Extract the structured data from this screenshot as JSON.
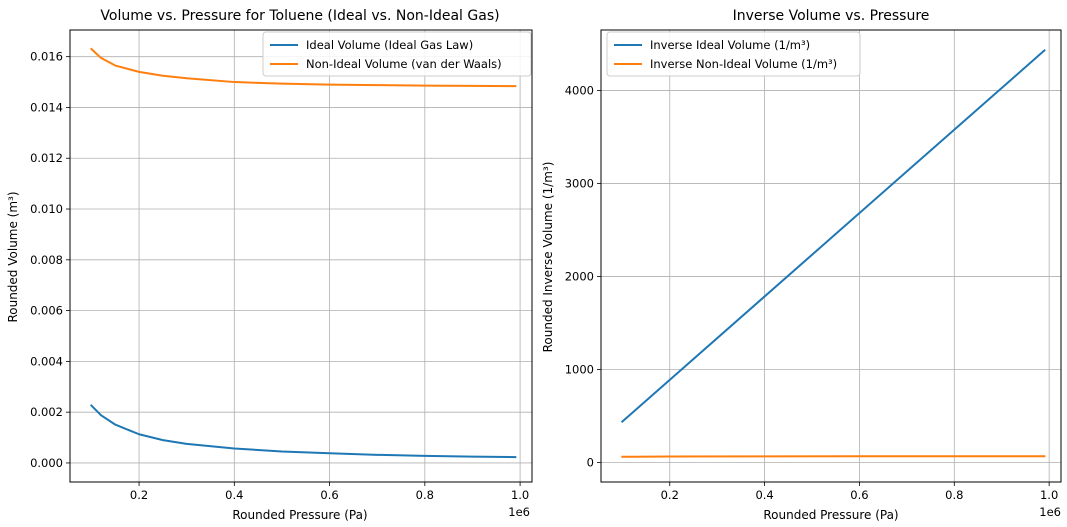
{
  "chart_data": [
    {
      "type": "line",
      "title": "Volume vs. Pressure for Toluene (Ideal vs. Non-Ideal Gas)",
      "xlabel": "Rounded Pressure (Pa)",
      "ylabel": "Rounded Volume (m³)",
      "x_offset_label": "1e6",
      "xlim": [
        0.055,
        1.025
      ],
      "ylim": [
        -0.00075,
        0.01705
      ],
      "xticks": [
        0.2,
        0.4,
        0.6,
        0.8,
        1.0
      ],
      "xtick_labels": [
        "0.2",
        "0.4",
        "0.6",
        "0.8",
        "1.0"
      ],
      "yticks": [
        0.0,
        0.002,
        0.004,
        0.006,
        0.008,
        0.01,
        0.012,
        0.014,
        0.016
      ],
      "ytick_labels": [
        "0.000",
        "0.002",
        "0.004",
        "0.006",
        "0.008",
        "0.010",
        "0.012",
        "0.014",
        "0.016"
      ],
      "grid": true,
      "legend_position": "top-right",
      "series": [
        {
          "name": "Ideal Volume (Ideal Gas Law)",
          "color": "#1f77b4",
          "x": [
            0.1,
            0.12,
            0.15,
            0.2,
            0.25,
            0.3,
            0.4,
            0.5,
            0.6,
            0.7,
            0.8,
            0.9,
            0.99
          ],
          "y": [
            0.00226,
            0.00188,
            0.00151,
            0.00113,
            0.0009,
            0.00075,
            0.00057,
            0.00045,
            0.00038,
            0.00032,
            0.00028,
            0.00025,
            0.00023
          ]
        },
        {
          "name": "Non-Ideal Volume (van der Waals)",
          "color": "#ff7f0e",
          "x": [
            0.1,
            0.12,
            0.15,
            0.2,
            0.25,
            0.3,
            0.4,
            0.5,
            0.6,
            0.7,
            0.8,
            0.9,
            0.99
          ],
          "y": [
            0.0163,
            0.01595,
            0.01565,
            0.0154,
            0.01525,
            0.01515,
            0.015,
            0.01494,
            0.0149,
            0.01488,
            0.01486,
            0.01485,
            0.01484
          ]
        }
      ]
    },
    {
      "type": "line",
      "title": "Inverse Volume vs. Pressure",
      "xlabel": "Rounded Pressure (Pa)",
      "ylabel": "Rounded Inverse Volume (1/m³)",
      "x_offset_label": "1e6",
      "xlim": [
        0.055,
        1.025
      ],
      "ylim": [
        -210,
        4650
      ],
      "xticks": [
        0.2,
        0.4,
        0.6,
        0.8,
        1.0
      ],
      "xtick_labels": [
        "0.2",
        "0.4",
        "0.6",
        "0.8",
        "1.0"
      ],
      "yticks": [
        0,
        1000,
        2000,
        3000,
        4000
      ],
      "ytick_labels": [
        "0",
        "1000",
        "2000",
        "3000",
        "4000"
      ],
      "grid": true,
      "legend_position": "top-left",
      "series": [
        {
          "name": "Inverse Ideal Volume (1/m³)",
          "color": "#1f77b4",
          "x": [
            0.1,
            0.99
          ],
          "y": [
            440,
            4430
          ]
        },
        {
          "name": "Inverse Non-Ideal Volume (1/m³)",
          "color": "#ff7f0e",
          "x": [
            0.1,
            0.2,
            0.4,
            0.6,
            0.8,
            0.99
          ],
          "y": [
            61,
            64,
            66,
            67,
            67,
            67
          ]
        }
      ]
    }
  ]
}
